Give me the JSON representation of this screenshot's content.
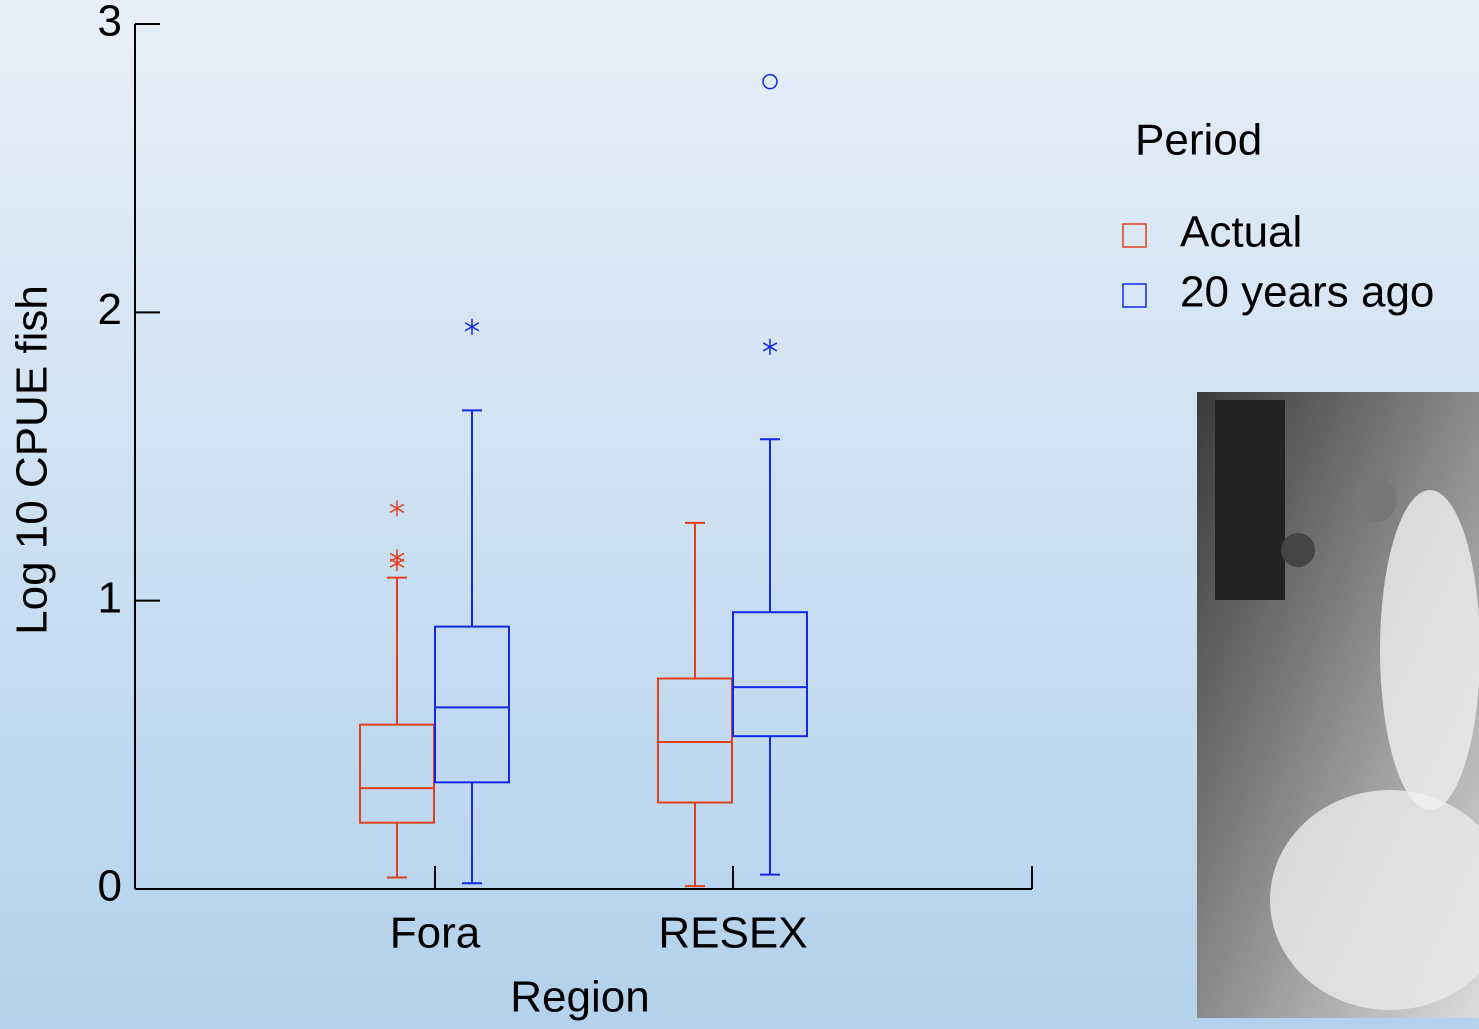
{
  "chart_data": {
    "type": "box",
    "x_label": "Region",
    "y_label": "Log 10 CPUE fish",
    "categories": [
      "Fora",
      "RESEX"
    ],
    "ylim": [
      0,
      3
    ],
    "yticks": [
      0,
      1,
      2,
      3
    ],
    "legend_title": "Period",
    "series": [
      {
        "name": "Actual",
        "color": "#e0401c",
        "low": [
          0.04,
          0.01
        ],
        "q1": [
          0.23,
          0.3
        ],
        "median": [
          0.35,
          0.51
        ],
        "q3": [
          0.57,
          0.73
        ],
        "high": [
          1.08,
          1.27
        ],
        "outliers": [
          [
            1.32,
            1.15,
            1.13
          ],
          []
        ],
        "far_outliers": [
          [],
          []
        ]
      },
      {
        "name": "20 years ago",
        "color": "#1428e6",
        "low": [
          0.02,
          0.05
        ],
        "q1": [
          0.37,
          0.53
        ],
        "median": [
          0.63,
          0.7
        ],
        "q3": [
          0.91,
          0.96
        ],
        "high": [
          1.66,
          1.56
        ],
        "outliers": [
          [
            1.95
          ],
          [
            1.88
          ]
        ],
        "far_outliers": [
          [],
          [
            2.8
          ]
        ]
      }
    ]
  }
}
